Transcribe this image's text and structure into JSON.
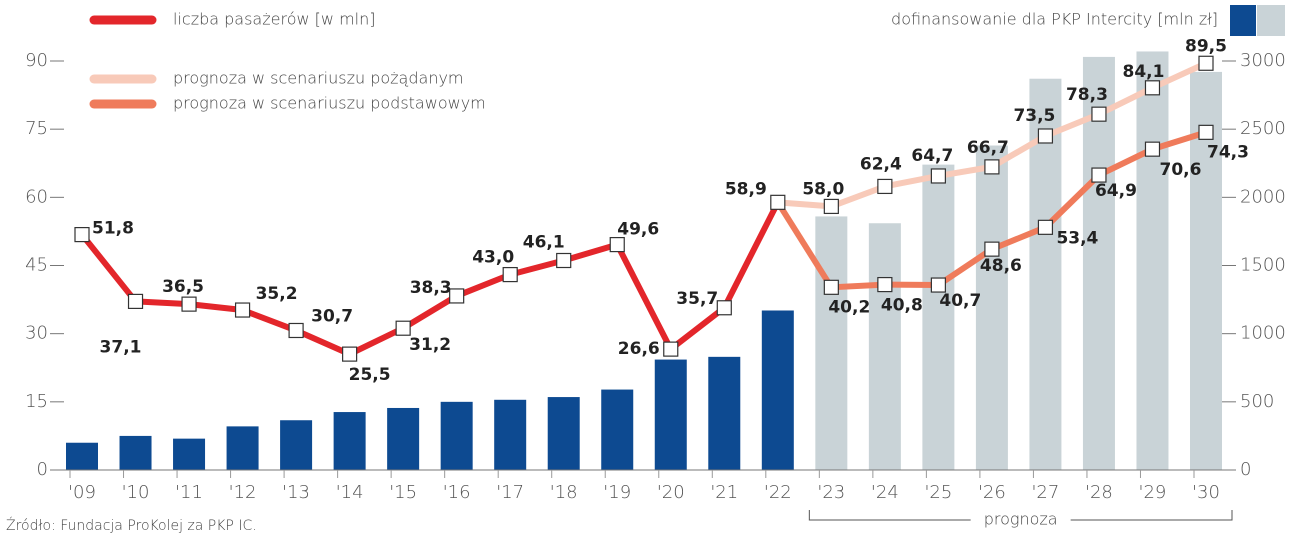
{
  "chart_data": {
    "type": "combo",
    "categories": [
      "'09",
      "'10",
      "'11",
      "'12",
      "'13",
      "'14",
      "'15",
      "'16",
      "'17",
      "'18",
      "'19",
      "'20",
      "'21",
      "'22",
      "'23",
      "'24",
      "'25",
      "'26",
      "'27",
      "'28",
      "'29",
      "'30"
    ],
    "series": [
      {
        "name": "dofinansowanie dla PKP Intercity [mln zł]",
        "type": "bar",
        "axis": "y2",
        "color": "#0d4a91",
        "forecast_color": "#c9d3d7",
        "values": [
          200,
          250,
          230,
          320,
          365,
          425,
          455,
          500,
          515,
          535,
          590,
          810,
          830,
          1170,
          1860,
          1810,
          2240,
          2380,
          2870,
          3030,
          3070,
          2920
        ]
      },
      {
        "name": "liczba pasażerów [w mln]",
        "type": "line",
        "color": "#e3262b",
        "values": [
          51.8,
          37.1,
          36.5,
          35.2,
          30.7,
          25.5,
          31.2,
          38.3,
          43.0,
          46.1,
          49.6,
          26.6,
          35.7,
          58.9,
          null,
          null,
          null,
          null,
          null,
          null,
          null,
          null
        ],
        "value_labels": [
          "51,8",
          "37,1",
          "36,5",
          "35,2",
          "30,7",
          "25,5",
          "31,2",
          "38,3",
          "43,0",
          "46,1",
          "49,6",
          "26,6",
          "35,7",
          "58,9",
          null,
          null,
          null,
          null,
          null,
          null,
          null,
          null
        ]
      },
      {
        "name": "prognoza w scenariuszu pożądanym",
        "type": "line",
        "color": "#f8cab9",
        "values": [
          null,
          null,
          null,
          null,
          null,
          null,
          null,
          null,
          null,
          null,
          null,
          null,
          null,
          null,
          58.0,
          62.4,
          64.7,
          66.7,
          73.5,
          78.3,
          84.1,
          89.5
        ],
        "value_labels": [
          null,
          null,
          null,
          null,
          null,
          null,
          null,
          null,
          null,
          null,
          null,
          null,
          null,
          null,
          "58,0",
          "62,4",
          "64,7",
          "66,7",
          "73,5",
          "78,3",
          "84,1",
          "89,5"
        ]
      },
      {
        "name": "prognoza w scenariuszu podstawowym",
        "type": "line",
        "color": "#ef7b5b",
        "values": [
          null,
          null,
          null,
          null,
          null,
          null,
          null,
          null,
          null,
          null,
          null,
          null,
          null,
          null,
          40.2,
          40.8,
          40.7,
          48.6,
          53.4,
          64.9,
          70.6,
          74.3
        ],
        "value_labels": [
          null,
          null,
          null,
          null,
          null,
          null,
          null,
          null,
          null,
          null,
          null,
          null,
          null,
          null,
          "40,2",
          "40,8",
          "40,7",
          "48,6",
          "53,4",
          "64,9",
          "70,6",
          "74,3"
        ]
      }
    ],
    "ylim": [
      0,
      90
    ],
    "yticks": [
      0,
      15,
      30,
      45,
      60,
      75,
      90
    ],
    "y2lim": [
      0,
      3000
    ],
    "y2ticks": [
      0,
      500,
      1000,
      1500,
      2000,
      2500,
      3000
    ],
    "forecast_from": "'23",
    "annotation": "prognoza",
    "source": "Źródło: Fundacja ProKolej za PKP IC."
  }
}
